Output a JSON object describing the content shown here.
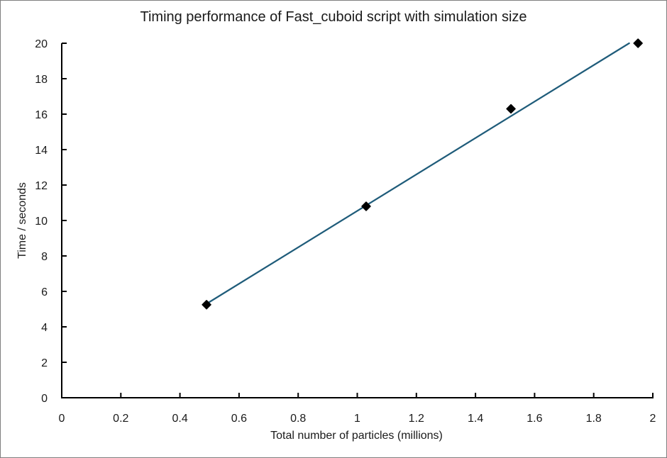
{
  "chart_data": {
    "type": "scatter",
    "title": "Timing performance of Fast_cuboid script with simulation size",
    "xlabel": "Total number of particles (millions)",
    "ylabel": "Time / seconds",
    "xlim": [
      0,
      2
    ],
    "ylim": [
      0,
      20
    ],
    "xticks": [
      "0",
      "0.2",
      "0.4",
      "0.6",
      "0.8",
      "1",
      "1.2",
      "1.4",
      "1.6",
      "1.8",
      "2"
    ],
    "yticks": [
      "0",
      "2",
      "4",
      "6",
      "8",
      "10",
      "12",
      "14",
      "16",
      "18",
      "20"
    ],
    "grid": false,
    "series": [
      {
        "x": [
          0.49,
          1.03,
          1.52,
          1.95
        ],
        "y": [
          5.25,
          10.8,
          16.3,
          20.0
        ],
        "color": "#000000",
        "marker": "diamond"
      }
    ],
    "trendline": {
      "type": "linear",
      "x": [
        0.49,
        1.92
      ],
      "y": [
        5.3,
        20.0
      ],
      "color": "#1f5c7a"
    }
  }
}
